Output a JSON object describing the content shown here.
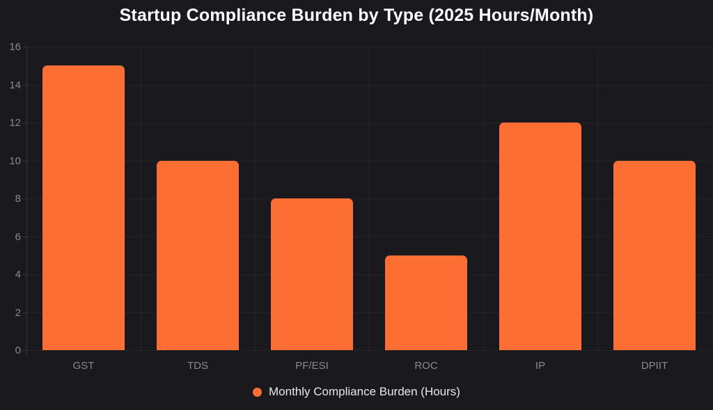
{
  "chart_data": {
    "type": "bar",
    "title": "Startup Compliance Burden by Type (2025 Hours/Month)",
    "categories": [
      "GST",
      "TDS",
      "PF/ESI",
      "ROC",
      "IP",
      "DPIIT"
    ],
    "values": [
      15,
      10,
      8,
      5,
      12,
      10
    ],
    "series": [
      {
        "name": "Monthly Compliance Burden (Hours)",
        "values": [
          15,
          10,
          8,
          5,
          12,
          10
        ]
      }
    ],
    "xlabel": "",
    "ylabel": "",
    "ylim": [
      0,
      16
    ],
    "yticks": [
      0,
      2,
      4,
      6,
      8,
      10,
      12,
      14,
      16
    ],
    "grid": true,
    "legend_position": "bottom",
    "legend_label": "Monthly Compliance Burden (Hours)"
  },
  "colors": {
    "background": "#1A1A1E",
    "bar": "#FD6E35",
    "title_text": "#FFFFFF",
    "axis_label_text": "#8A8A8E",
    "legend_text": "#E9E9EB"
  }
}
